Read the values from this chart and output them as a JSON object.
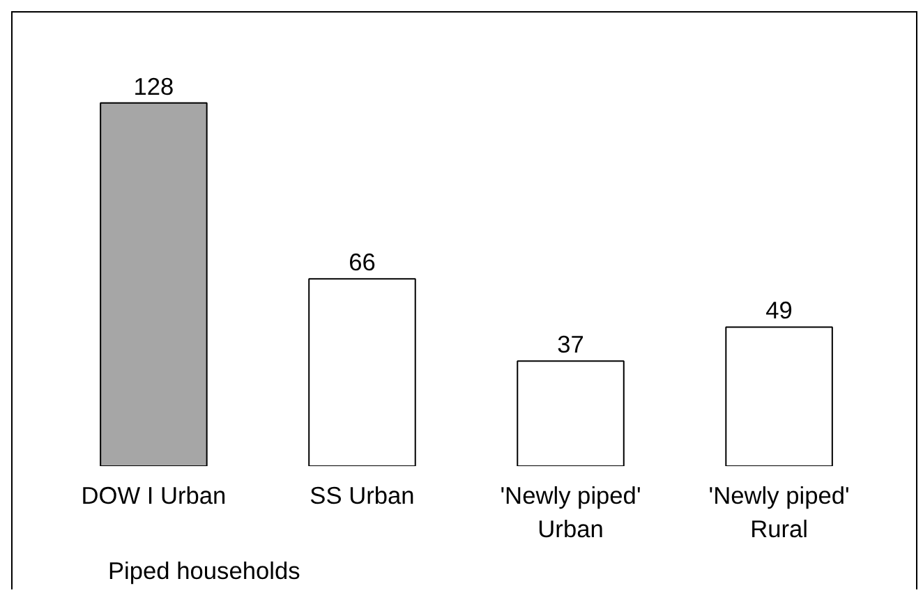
{
  "chart_data": {
    "type": "bar",
    "categories": [
      "DOW I Urban",
      "SS Urban",
      "'Newly piped'\nUrban",
      "'Newly piped'\nRural"
    ],
    "values": [
      128,
      66,
      37,
      49
    ],
    "colors": [
      "#a6a6a6",
      "#ffffff",
      "#ffffff",
      "#ffffff"
    ],
    "data_labels": true,
    "annotations": [
      "Piped households"
    ]
  }
}
